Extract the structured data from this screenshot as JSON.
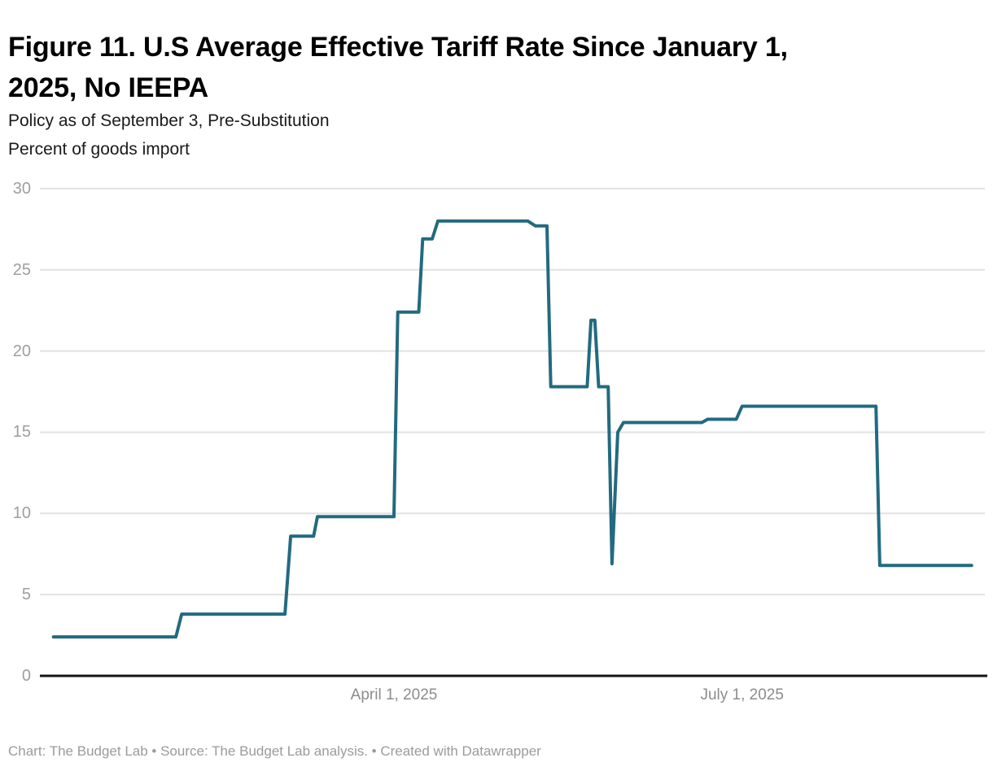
{
  "header": {
    "title": "Figure 11. U.S Average Effective Tariff Rate Since January 1,\n2025, No IEEPA",
    "subtitle_line1": "Policy as of September 3, Pre-Substitution",
    "subtitle_line2": "Percent of goods import"
  },
  "footer": {
    "credit": "Chart: The Budget Lab • Source: The Budget Lab analysis. • Created with Datawrapper"
  },
  "chart_data": {
    "type": "line",
    "title": "Figure 11. U.S Average Effective Tariff Rate Since January 1, 2025, No IEEPA",
    "subtitle": "Policy as of September 3, Pre-Substitution",
    "ylabel": "Percent of goods import",
    "xlabel": "",
    "ylim": [
      0,
      30
    ],
    "yticks": [
      30,
      25,
      20,
      15,
      10,
      5,
      0
    ],
    "grid": "horizontal-only, dark baseline at 0",
    "legend_position": "none",
    "x_axis": {
      "unit": "days since 2025-01-01",
      "range_days": [
        0,
        243
      ],
      "ticks": [
        {
          "label": "April 1, 2025",
          "day": 90
        },
        {
          "label": "July 1, 2025",
          "day": 181
        }
      ]
    },
    "series": [
      {
        "name": "U.S. average effective tariff rate, no IEEPA (percent of goods import)",
        "color": "#236a80",
        "points_day_value": [
          [
            1,
            2.4
          ],
          [
            33,
            2.4
          ],
          [
            34.5,
            3.8
          ],
          [
            61.5,
            3.8
          ],
          [
            63,
            8.6
          ],
          [
            69,
            8.6
          ],
          [
            70,
            9.8
          ],
          [
            90,
            9.8
          ],
          [
            91,
            22.4
          ],
          [
            96.5,
            22.4
          ],
          [
            97.5,
            26.9
          ],
          [
            100,
            26.9
          ],
          [
            101.5,
            28.0
          ],
          [
            125,
            28.0
          ],
          [
            127,
            27.7
          ],
          [
            130,
            27.7
          ],
          [
            131,
            17.8
          ],
          [
            140.5,
            17.8
          ],
          [
            141.5,
            21.9
          ],
          [
            142.5,
            21.9
          ],
          [
            143.5,
            17.8
          ],
          [
            146,
            17.8
          ],
          [
            147,
            6.9
          ],
          [
            148.5,
            15.0
          ],
          [
            150,
            15.6
          ],
          [
            170.5,
            15.6
          ],
          [
            172,
            15.8
          ],
          [
            179.5,
            15.8
          ],
          [
            181,
            16.6
          ],
          [
            216,
            16.6
          ],
          [
            217,
            6.8
          ],
          [
            241,
            6.8
          ]
        ]
      }
    ]
  },
  "colors": {
    "line": "#236a80",
    "gridline": "#e2e2e2",
    "baseline": "#151515",
    "y_tick_text": "#9e9e9e",
    "x_tick_text": "#8c8c8c",
    "title_text": "#000000",
    "subtitle_text": "#1a1a1a",
    "footer_text": "#9b9b9b",
    "background": "#ffffff"
  }
}
